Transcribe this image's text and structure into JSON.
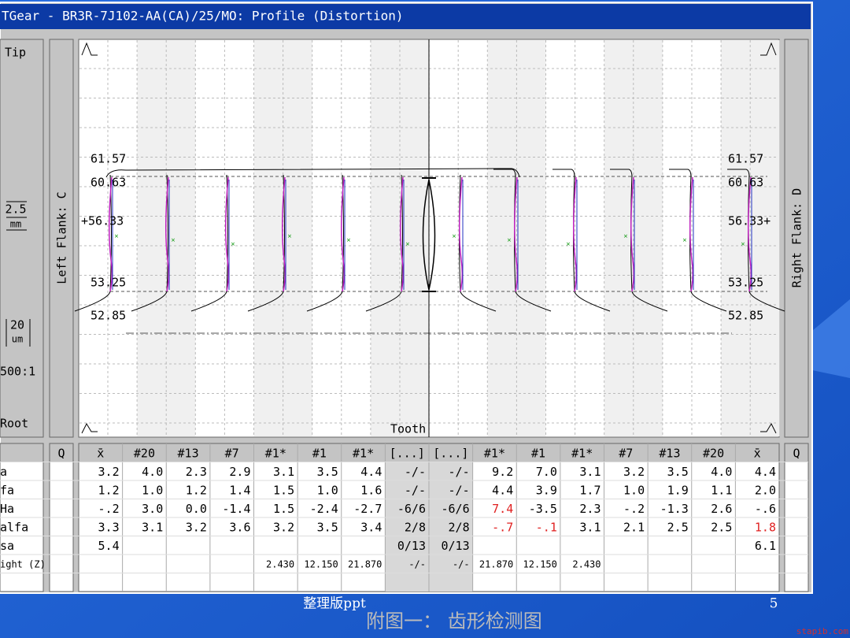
{
  "window_title": "TGear - BR3R-7J102-AA(CA)/25/MO: Profile (Distortion)",
  "left_panel": {
    "tip": "Tip",
    "scale_mm_value": "2.5",
    "scale_mm_unit": "mm",
    "scale_um_value": "20",
    "scale_um_unit": "um",
    "magnification": "500:1",
    "root": "Root"
  },
  "left_flank": "Left Flank: C",
  "right_flank": "Right Flank: D",
  "plot": {
    "left_levels": [
      "61.57",
      "60.63",
      "+56.33",
      "53.25",
      "52.85"
    ],
    "right_levels": [
      "61.57",
      "60.63",
      "56.33+",
      "53.25",
      "52.85"
    ],
    "tooth_label": "Tooth"
  },
  "table": {
    "header": [
      "Q",
      "x̄",
      "#20",
      "#13",
      "#7",
      "#1*",
      "#1",
      "#1*",
      "[...]",
      "[...]",
      "#1*",
      "#1",
      "#1*",
      "#7",
      "#13",
      "#20",
      "x̄",
      "Q"
    ],
    "row_labels": [
      "a",
      "fa",
      "Ha",
      "alfa",
      "sa",
      "ight (Z)"
    ],
    "rows": [
      [
        "3.2",
        "4.0",
        "2.3",
        "2.9",
        "3.1",
        "3.5",
        "4.4",
        "-/-",
        "-/-",
        "9.2",
        "7.0",
        "3.1",
        "3.2",
        "3.5",
        "4.0",
        "4.4"
      ],
      [
        "1.2",
        "1.0",
        "1.2",
        "1.4",
        "1.5",
        "1.0",
        "1.6",
        "-/-",
        "-/-",
        "4.4",
        "3.9",
        "1.7",
        "1.0",
        "1.9",
        "1.1",
        "2.0"
      ],
      [
        "-.2",
        "3.0",
        "0.0",
        "-1.4",
        "1.5",
        "-2.4",
        "-2.7",
        "-6/6",
        "-6/6",
        "7.4",
        "-3.5",
        "2.3",
        "-.2",
        "-1.3",
        "2.6",
        "-.6"
      ],
      [
        "3.3",
        "3.1",
        "3.2",
        "3.6",
        "3.2",
        "3.5",
        "3.4",
        "2/8",
        "2/8",
        "-.7",
        "-.1",
        "3.1",
        "2.1",
        "2.5",
        "2.5",
        "1.8"
      ],
      [
        "5.4",
        null,
        null,
        null,
        null,
        null,
        null,
        "0/13",
        "0/13",
        null,
        null,
        null,
        null,
        null,
        null,
        "6.1"
      ],
      [
        null,
        null,
        null,
        null,
        "2.430",
        "12.150",
        "21.870",
        "-/-",
        "-/-",
        "21.870",
        "12.150",
        "2.430",
        null,
        null,
        null,
        null
      ]
    ],
    "red_cells": [
      [
        2,
        9
      ],
      [
        3,
        9
      ],
      [
        3,
        10
      ],
      [
        3,
        15
      ]
    ]
  },
  "footer": {
    "caption": "整理版ppt",
    "page": "5",
    "figure_title": "附图一： 齿形检测图",
    "watermark": "stapib.com"
  }
}
